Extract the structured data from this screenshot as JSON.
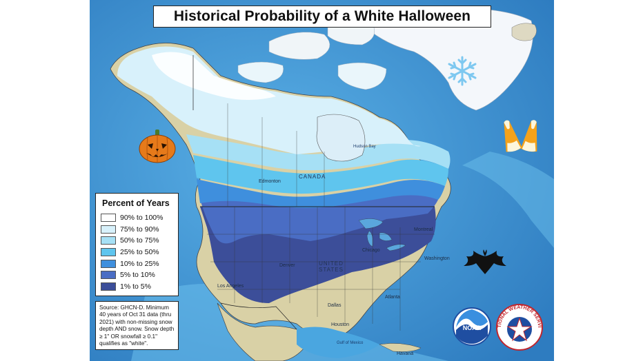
{
  "title": "Historical Probability of a White Halloween",
  "legend": {
    "title": "Percent of Years",
    "items": [
      {
        "label": "90% to 100%",
        "color": "#ffffff"
      },
      {
        "label": "75% to 90%",
        "color": "#d8f1fb"
      },
      {
        "label": "50% to 75%",
        "color": "#a6e0f5"
      },
      {
        "label": "25% to 50%",
        "color": "#5fc5ee"
      },
      {
        "label": "10% to 25%",
        "color": "#3f8fdd"
      },
      {
        "label": "5% to 10%",
        "color": "#4a6dc4"
      },
      {
        "label": "1% to 5%",
        "color": "#3c4e99"
      }
    ]
  },
  "source_note": "Source: GHCN-D. Minimum 40 years of Oct 31 data (thru 2021) with non-missing snow depth AND snow. Snow depth ≥ 1\" OR snowfall ≥ 0.1\" qualifies as \"white\".",
  "map_labels": {
    "canada": "CANADA",
    "united_states": "UNITED STATES",
    "hudson_bay": "Hudson Bay",
    "gulf_of_mexico": "Gulf of Mexico",
    "cities": [
      "Los Angeles",
      "Dallas",
      "Houston",
      "Atlanta",
      "Havana",
      "Edmonton",
      "Washington",
      "Montreal",
      "Chicago",
      "Denver"
    ]
  },
  "logos": {
    "noaa": "NOAA",
    "nws": "NATIONAL WEATHER SERVICE"
  },
  "colors": {
    "ocean": "#3a8fcf",
    "land_snowfree": "#d9d1a6",
    "greenland": "#f4f7fb"
  },
  "decorations": [
    "pumpkin-icon",
    "snowflake-icon",
    "candy-corn-icon",
    "bat-icon"
  ]
}
